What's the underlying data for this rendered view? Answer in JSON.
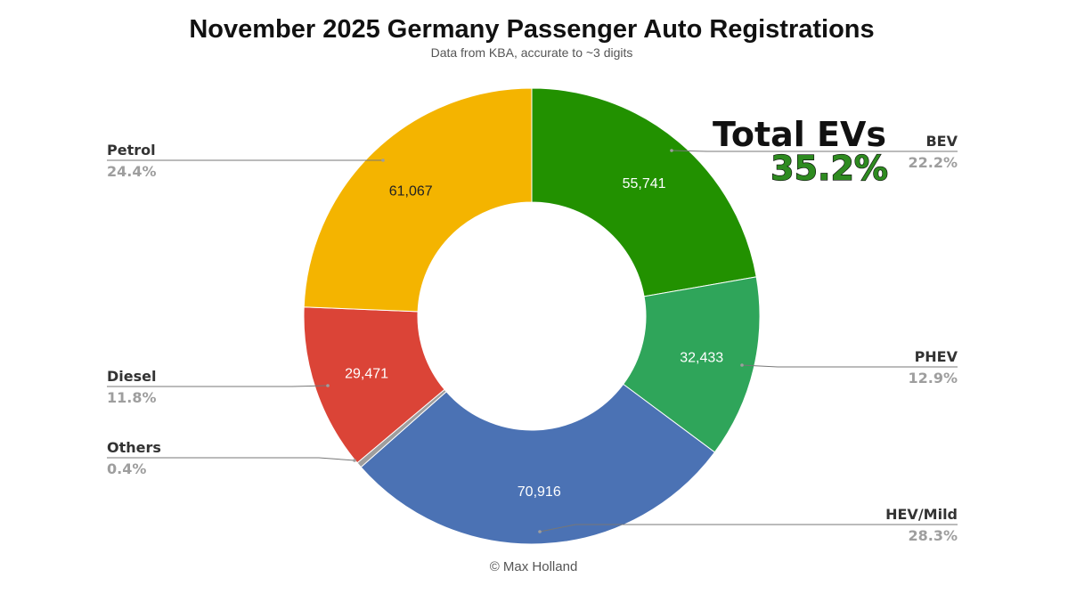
{
  "chart_data": {
    "type": "pie",
    "variant": "donut",
    "title": "November 2025 Germany Passenger Auto Registrations",
    "subtitle": "Data from KBA, accurate to ~3 digits",
    "credit": "© Max Holland",
    "legend_placement": "labels beside slices with leader lines",
    "slices": [
      {
        "name": "BEV",
        "value": 55741,
        "value_label": "55,741",
        "percent_label": "22.2%",
        "color": "#229100",
        "value_text_color": "#ffffff"
      },
      {
        "name": "PHEV",
        "value": 32433,
        "value_label": "32,433",
        "percent_label": "12.9%",
        "color": "#2fa55a",
        "value_text_color": "#ffffff"
      },
      {
        "name": "HEV/Mild",
        "value": 70916,
        "value_label": "70,916",
        "percent_label": "28.3%",
        "color": "#4b72b4",
        "value_text_color": "#ffffff"
      },
      {
        "name": "Others",
        "value": 1000,
        "value_label": "",
        "percent_label": "0.4%",
        "color": "#9e9e9e",
        "value_text_color": "#ffffff"
      },
      {
        "name": "Diesel",
        "value": 29471,
        "value_label": "29,471",
        "percent_label": "11.8%",
        "color": "#db4437",
        "value_text_color": "#ffffff"
      },
      {
        "name": "Petrol",
        "value": 61067,
        "value_label": "61,067",
        "percent_label": "24.4%",
        "color": "#f4b400",
        "value_text_color": "#222222"
      }
    ],
    "callout": {
      "title": "Total EVs",
      "value": "35.2%",
      "color": "#2e8b20"
    }
  }
}
